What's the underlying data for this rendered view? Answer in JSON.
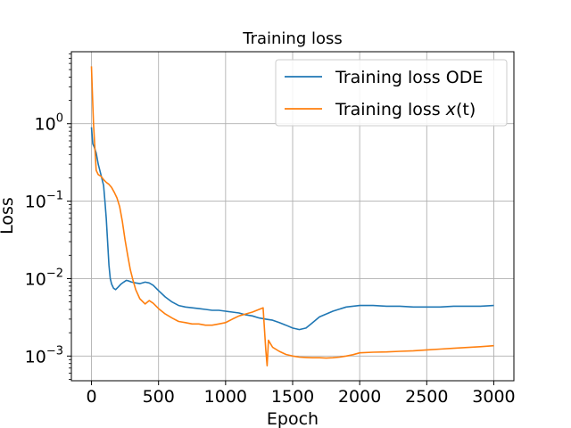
{
  "chart_data": {
    "type": "line",
    "title": "Training loss",
    "xlabel": "Epoch",
    "ylabel": "Loss",
    "xlim": [
      -150,
      3150
    ],
    "ylim": [
      0.00048,
      8.5
    ],
    "yscale": "log",
    "grid": true,
    "legend_position": "top-right",
    "x_ticks": [
      0,
      500,
      1000,
      1500,
      2000,
      2500,
      3000
    ],
    "x_tick_labels": [
      "0",
      "500",
      "1000",
      "1500",
      "2000",
      "2500",
      "3000"
    ],
    "y_ticks": [
      1,
      0.1,
      0.01,
      0.001
    ],
    "y_tick_labels": [
      {
        "base": "10",
        "exp": "0"
      },
      {
        "base": "10",
        "exp": "−1"
      },
      {
        "base": "10",
        "exp": "−2"
      },
      {
        "base": "10",
        "exp": "−3"
      }
    ],
    "series": [
      {
        "name": "Training loss ODE",
        "color": "#1f77b4",
        "x": [
          0,
          10,
          20,
          35,
          50,
          70,
          90,
          100,
          110,
          120,
          130,
          140,
          150,
          165,
          180,
          200,
          220,
          240,
          260,
          280,
          300,
          330,
          360,
          400,
          430,
          460,
          500,
          550,
          600,
          650,
          700,
          750,
          800,
          850,
          900,
          950,
          1000,
          1050,
          1100,
          1150,
          1200,
          1250,
          1300,
          1350,
          1400,
          1450,
          1500,
          1550,
          1600,
          1650,
          1700,
          1800,
          1900,
          2000,
          2100,
          2200,
          2300,
          2400,
          2500,
          2600,
          2700,
          2800,
          2900,
          3000
        ],
        "y": [
          0.9,
          0.55,
          0.5,
          0.42,
          0.3,
          0.22,
          0.16,
          0.1,
          0.06,
          0.03,
          0.015,
          0.01,
          0.0085,
          0.0075,
          0.0072,
          0.0078,
          0.0085,
          0.009,
          0.0095,
          0.0093,
          0.009,
          0.0088,
          0.0086,
          0.009,
          0.0088,
          0.0082,
          0.007,
          0.0058,
          0.005,
          0.0045,
          0.0043,
          0.0042,
          0.0041,
          0.004,
          0.0039,
          0.0039,
          0.0038,
          0.0037,
          0.0036,
          0.0034,
          0.0033,
          0.0031,
          0.003,
          0.0029,
          0.0027,
          0.0025,
          0.0023,
          0.0022,
          0.0023,
          0.0027,
          0.0032,
          0.0038,
          0.0043,
          0.0045,
          0.0045,
          0.0044,
          0.0044,
          0.0043,
          0.0043,
          0.0043,
          0.0044,
          0.0044,
          0.0044,
          0.0045
        ]
      },
      {
        "name": "Training loss x(t)",
        "color": "#ff7f0e",
        "x": [
          0,
          5,
          15,
          25,
          35,
          50,
          70,
          90,
          110,
          130,
          150,
          170,
          190,
          210,
          230,
          250,
          270,
          290,
          310,
          330,
          360,
          400,
          430,
          460,
          500,
          550,
          600,
          650,
          700,
          750,
          800,
          850,
          900,
          950,
          1000,
          1050,
          1100,
          1150,
          1200,
          1250,
          1280,
          1300,
          1310,
          1320,
          1350,
          1400,
          1450,
          1500,
          1550,
          1600,
          1650,
          1700,
          1750,
          1800,
          1850,
          1900,
          1950,
          2000,
          2100,
          2200,
          2300,
          2400,
          2500,
          2600,
          2700,
          2800,
          2900,
          3000
        ],
        "y": [
          5.5,
          3.0,
          1.0,
          0.5,
          0.25,
          0.22,
          0.21,
          0.19,
          0.175,
          0.165,
          0.15,
          0.13,
          0.11,
          0.085,
          0.055,
          0.032,
          0.02,
          0.013,
          0.0095,
          0.0072,
          0.0055,
          0.0047,
          0.0052,
          0.0048,
          0.0041,
          0.0035,
          0.0031,
          0.0028,
          0.0027,
          0.0026,
          0.0026,
          0.0025,
          0.0025,
          0.0026,
          0.0027,
          0.003,
          0.0033,
          0.0035,
          0.0037,
          0.004,
          0.0042,
          0.0012,
          0.00075,
          0.0016,
          0.0013,
          0.00115,
          0.00105,
          0.001,
          0.00097,
          0.00096,
          0.00095,
          0.00095,
          0.00094,
          0.00095,
          0.00097,
          0.001,
          0.00104,
          0.0011,
          0.00112,
          0.00113,
          0.00115,
          0.00117,
          0.0012,
          0.00123,
          0.00126,
          0.00129,
          0.00132,
          0.00136
        ]
      }
    ],
    "legend": [
      {
        "prefix": "Training loss ODE",
        "var": "",
        "suffix": ""
      },
      {
        "prefix": "Training loss ",
        "var": "x",
        "suffix": "(t)"
      }
    ]
  }
}
